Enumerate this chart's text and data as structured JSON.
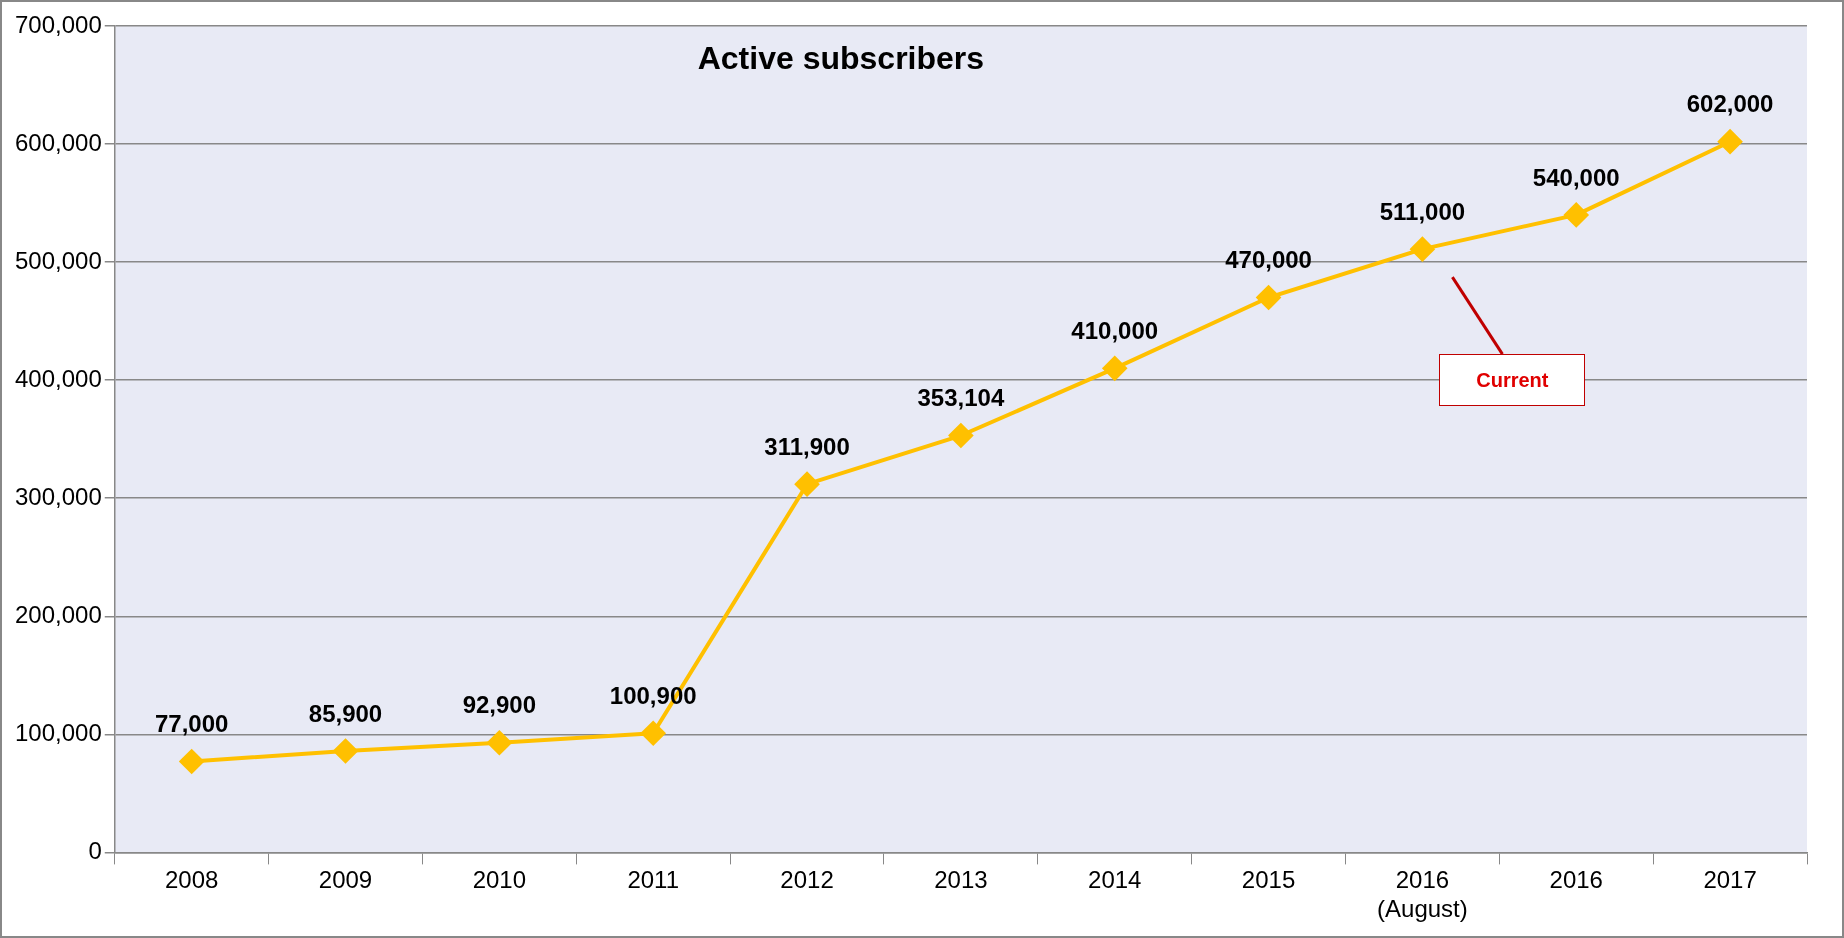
{
  "chart_data": {
    "type": "line",
    "title": "Active subscribers",
    "categories": [
      "2008",
      "2009",
      "2010",
      "2011",
      "2012",
      "2013",
      "2014",
      "2015",
      "2016\n(August)",
      "2016",
      "2017"
    ],
    "series": [
      {
        "color": "#ffc000",
        "values": [
          77000,
          85900,
          92900,
          100900,
          311900,
          353104,
          410000,
          470000,
          511000,
          540000,
          602000
        ]
      }
    ],
    "ylim": [
      0,
      700000
    ],
    "yticks": [
      {
        "value": 0,
        "label": "0"
      },
      {
        "value": 100000,
        "label": "100,000"
      },
      {
        "value": 200000,
        "label": "200,000"
      },
      {
        "value": 300000,
        "label": "300,000"
      },
      {
        "value": 400000,
        "label": "400,000"
      },
      {
        "value": 500000,
        "label": "500,000"
      },
      {
        "value": 600000,
        "label": "600,000"
      },
      {
        "value": 700000,
        "label": "700,000"
      }
    ],
    "value_labels": [
      "77,000",
      "85,900",
      "92,900",
      "100,900",
      "311,900",
      "353,104",
      "410,000",
      "470,000",
      "511,000",
      "540,000",
      "602,000"
    ],
    "grid": "y",
    "legend": false,
    "marker": "diamond",
    "line_style": "solid",
    "annotations": [
      "Current"
    ]
  }
}
